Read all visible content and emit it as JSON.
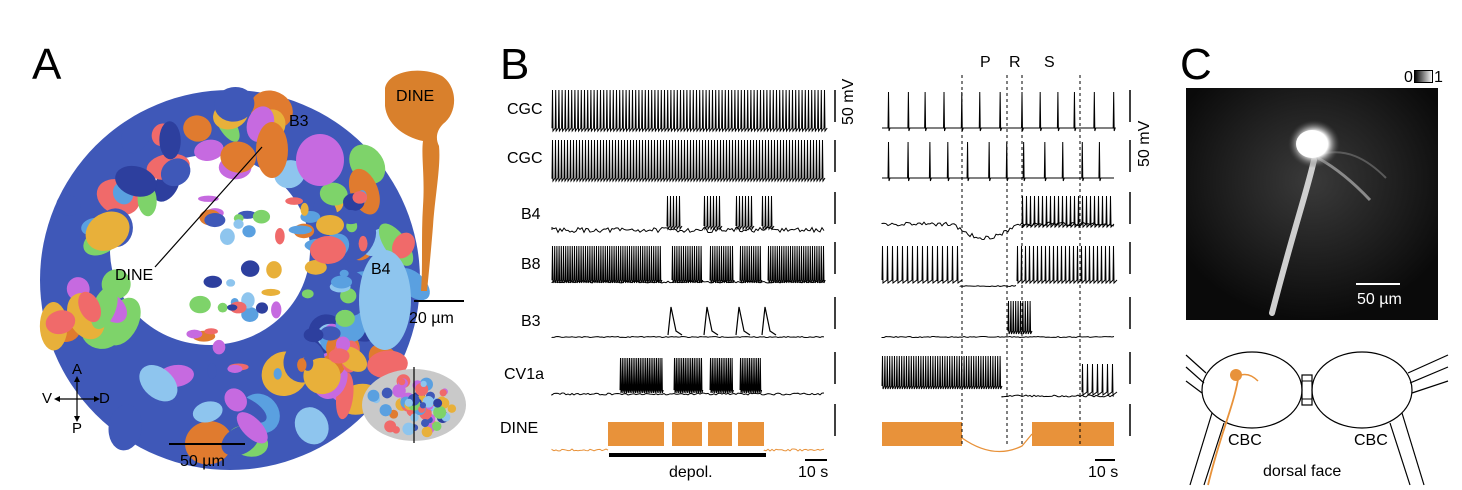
{
  "panels": {
    "a": {
      "letter": "A",
      "labels": {
        "b3": "B3",
        "b4": "B4",
        "dine_main": "DINE",
        "dine_neuron": "DINE"
      },
      "scale_bar_main": "50 µm",
      "scale_bar_neuron": "20 µm",
      "compass": {
        "up": "A",
        "down": "P",
        "left": "V",
        "right": "D"
      }
    },
    "b": {
      "letter": "B",
      "trace_labels": [
        "CGC",
        "CGC",
        "B4",
        "B8",
        "B3",
        "CV1a",
        "DINE"
      ],
      "voltage_scale": "50 mV",
      "time_scale": "10 s",
      "stim_label": "depol.",
      "phase_labels": [
        "P",
        "R",
        "S"
      ],
      "colors": {
        "trace": "#000000",
        "dine": "#e8923a"
      }
    },
    "c": {
      "letter": "C",
      "colorbar": {
        "min": "0",
        "max": "1"
      },
      "scale_bar": "50 µm",
      "schematic": {
        "cbc_left": "CBC",
        "cbc_right": "CBC",
        "face": "dorsal face"
      },
      "colors": {
        "neuron": "#e8923a"
      }
    }
  }
}
